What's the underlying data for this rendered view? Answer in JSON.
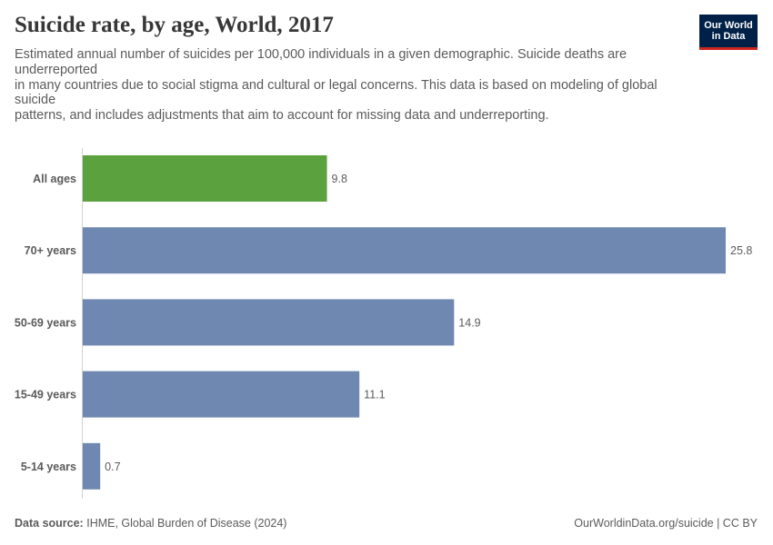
{
  "header": {
    "title": "Suicide rate, by age, World, 2017",
    "subtitle_lines": [
      "Estimated annual number of suicides per 100,000 individuals in a given demographic. Suicide deaths are underreported",
      "in many countries due to social stigma and cultural or legal concerns. This data is based on modeling of global suicide",
      "patterns, and includes adjustments that aim to account for missing data and underreporting."
    ]
  },
  "logo": {
    "line1": "Our World",
    "line2": "in Data"
  },
  "footer": {
    "source_label": "Data source:",
    "source_text": "IHME, Global Burden of Disease (2024)",
    "link": "OurWorldinData.org/suicide | CC BY"
  },
  "colors": {
    "highlight": "#5ba23f",
    "bar": "#6f88b1",
    "axis": "#d2d2d2",
    "text": "#5b5b5b"
  },
  "chart_data": {
    "type": "bar",
    "orientation": "horizontal",
    "title": "Suicide rate, by age, World, 2017",
    "categories": [
      "All ages",
      "70+ years",
      "50-69 years",
      "15-49 years",
      "5-14 years"
    ],
    "values": [
      9.8,
      25.8,
      14.9,
      11.1,
      0.7
    ],
    "value_labels": [
      "9.8",
      "25.8",
      "14.9",
      "11.1",
      "0.7"
    ],
    "highlight": [
      "All ages"
    ],
    "xlim": [
      0,
      25.8
    ]
  }
}
